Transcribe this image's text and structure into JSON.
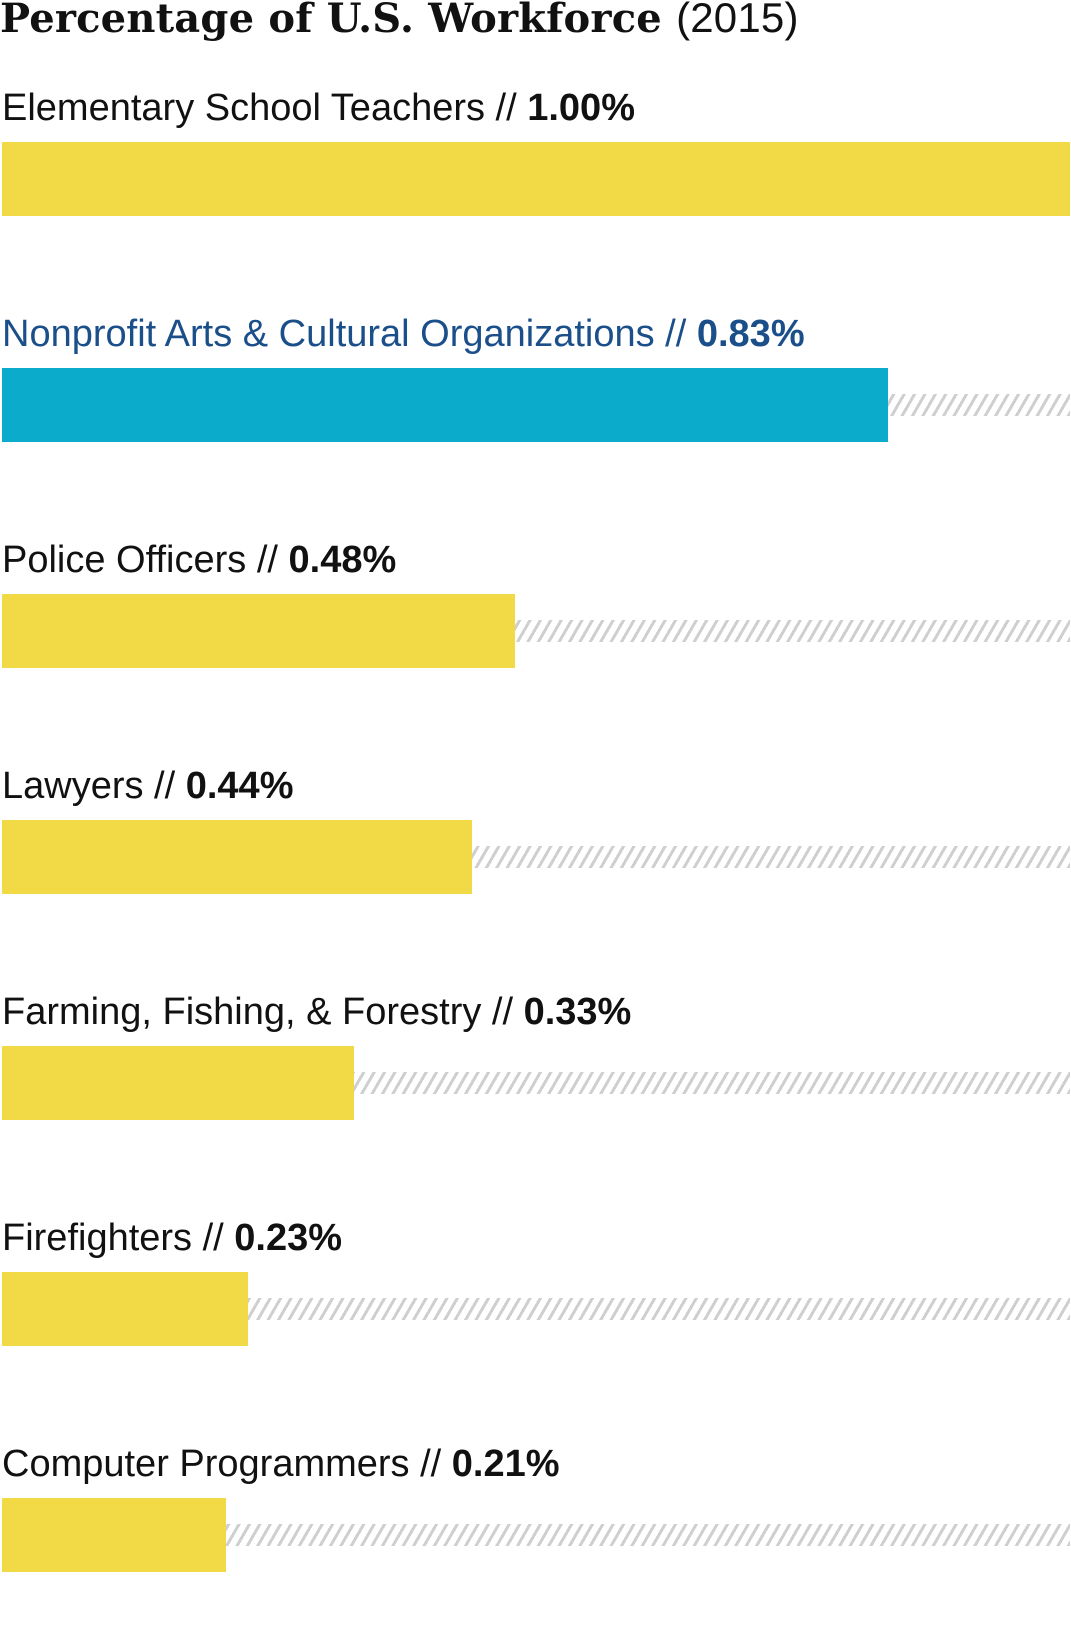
{
  "chart_data": {
    "type": "bar",
    "orientation": "horizontal",
    "title": "Percentage of U.S. Workforce",
    "subtitle": "(2015)",
    "separator": "//",
    "categories": [
      "Elementary School Teachers",
      "Nonprofit Arts & Cultural Organizations",
      "Police Officers",
      "Lawyers",
      "Farming, Fishing, & Forestry",
      "Firefighters",
      "Computer Programmers"
    ],
    "values": [
      1.0,
      0.83,
      0.48,
      0.44,
      0.33,
      0.23,
      0.21
    ],
    "value_labels": [
      "1.00%",
      "0.83%",
      "0.48%",
      "0.44%",
      "0.33%",
      "0.23%",
      "0.21%"
    ],
    "highlighted_index": 1,
    "xlim": [
      0,
      1.0
    ],
    "grid": false,
    "legend": "none",
    "colors": {
      "bar": "#f2da47",
      "highlight_bar": "#0aabcb",
      "highlight_text": "#1b4f8a",
      "hatch": "#cfcfcf",
      "text": "#111111"
    }
  }
}
